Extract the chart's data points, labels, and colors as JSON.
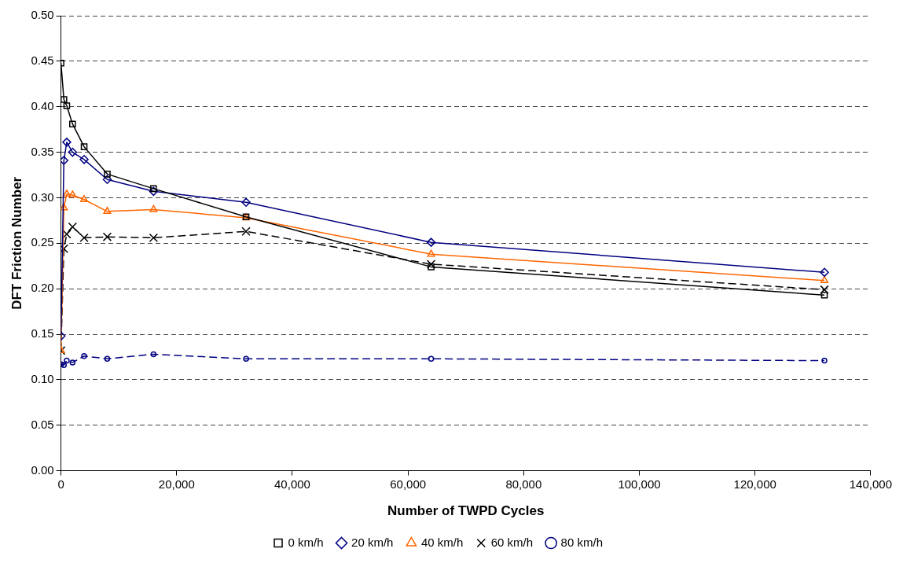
{
  "chart_data": {
    "type": "line",
    "xlabel": "Number of TWPD Cycles",
    "ylabel": "DFT Friction Number",
    "x": [
      0,
      500,
      1000,
      2000,
      4000,
      8000,
      16000,
      32000,
      64000,
      132000
    ],
    "xlim": [
      0,
      140000
    ],
    "xticks": [
      {
        "value": 0,
        "label": "0"
      },
      {
        "value": 20000,
        "label": "20,000"
      },
      {
        "value": 40000,
        "label": "40,000"
      },
      {
        "value": 60000,
        "label": "60,000"
      },
      {
        "value": 80000,
        "label": "80,000"
      },
      {
        "value": 100000,
        "label": "100,000"
      },
      {
        "value": 120000,
        "label": "120,000"
      },
      {
        "value": 140000,
        "label": "140,000"
      }
    ],
    "ylim": [
      0,
      0.5
    ],
    "yticks": [
      {
        "value": 0,
        "label": "0.00"
      },
      {
        "value": 0.05,
        "label": "0.05"
      },
      {
        "value": 0.1,
        "label": "0.10"
      },
      {
        "value": 0.15,
        "label": "0.15"
      },
      {
        "value": 0.2,
        "label": "0.20"
      },
      {
        "value": 0.25,
        "label": "0.25"
      },
      {
        "value": 0.3,
        "label": "0.30"
      },
      {
        "value": 0.35,
        "label": "0.35"
      },
      {
        "value": 0.4,
        "label": "0.40"
      },
      {
        "value": 0.45,
        "label": "0.45"
      },
      {
        "value": 0.5,
        "label": "0.50"
      }
    ],
    "grid": "y",
    "legend": "bottom",
    "series": [
      {
        "name": "0 km/h",
        "color": "#000000",
        "marker": "square",
        "line_style": "solid",
        "values": [
          0.448,
          0.408,
          0.401,
          0.381,
          0.356,
          0.326,
          0.31,
          0.279,
          0.224,
          0.193
        ]
      },
      {
        "name": "20 km/h",
        "color": "#000080",
        "marker": "diamond",
        "line_style": "solid",
        "values": [
          0.148,
          0.341,
          0.361,
          0.35,
          0.342,
          0.32,
          0.307,
          0.295,
          0.251,
          0.218
        ]
      },
      {
        "name": "40 km/h",
        "color": "#ff6600",
        "marker": "triangle",
        "line_style": "solid",
        "values": [
          0.132,
          0.289,
          0.304,
          0.303,
          0.298,
          0.285,
          0.287,
          0.278,
          0.238,
          0.209
        ]
      },
      {
        "name": "60 km/h",
        "color": "#000000",
        "marker": "cross",
        "line_style": "dashed",
        "values": [
          0.132,
          0.244,
          0.26,
          0.268,
          0.256,
          0.257,
          0.256,
          0.263,
          0.227,
          0.199
        ]
      },
      {
        "name": "80 km/h",
        "color": "#000080",
        "marker": "circle",
        "line_style": "dashed",
        "values": [
          0.117,
          0.116,
          0.121,
          0.119,
          0.126,
          0.123,
          0.128,
          0.123,
          0.123,
          0.121
        ]
      }
    ]
  }
}
